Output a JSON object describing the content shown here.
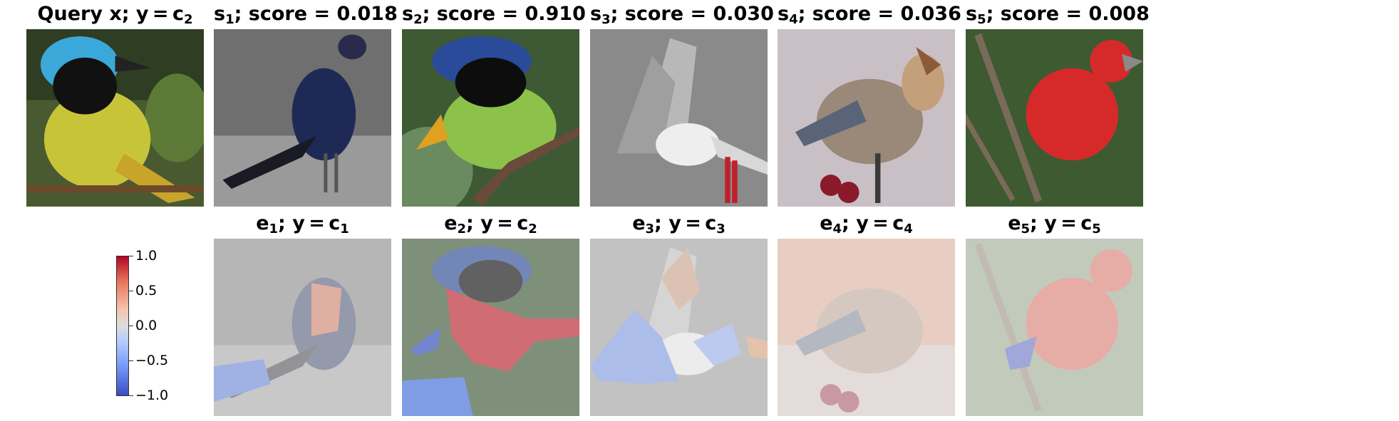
{
  "query": {
    "title_main": "Query x; y = c",
    "title_sub": "2"
  },
  "columns": [
    {
      "s_title_pre": "s",
      "s_title_sub": "1",
      "s_title_post": "; score = 0.018",
      "e_title_pre": "e",
      "e_title_sub": "1",
      "e_title_post": "; y = c",
      "e_title_sub2": "1"
    },
    {
      "s_title_pre": "s",
      "s_title_sub": "2",
      "s_title_post": "; score = 0.910",
      "e_title_pre": "e",
      "e_title_sub": "2",
      "e_title_post": "; y = c",
      "e_title_sub2": "2"
    },
    {
      "s_title_pre": "s",
      "s_title_sub": "3",
      "s_title_post": "; score = 0.030",
      "e_title_pre": "e",
      "e_title_sub": "3",
      "e_title_post": "; y = c",
      "e_title_sub2": "3"
    },
    {
      "s_title_pre": "s",
      "s_title_sub": "4",
      "s_title_post": "; score = 0.036",
      "e_title_pre": "e",
      "e_title_sub": "4",
      "e_title_post": "; y = c",
      "e_title_sub2": "4"
    },
    {
      "s_title_pre": "s",
      "s_title_sub": "5",
      "s_title_post": "; score = 0.008",
      "e_title_pre": "e",
      "e_title_sub": "5",
      "e_title_post": "; y = c",
      "e_title_sub2": "5"
    }
  ],
  "colorbar": {
    "ticks": [
      "1.0",
      "0.5",
      "0.0",
      "−0.5",
      "−1.0"
    ]
  }
}
